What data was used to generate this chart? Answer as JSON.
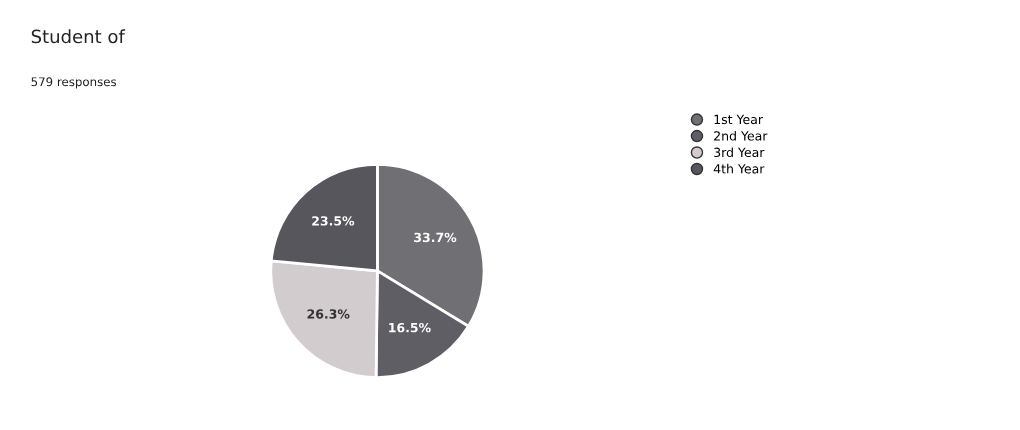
{
  "chart_data": {
    "type": "pie",
    "title": "Student of",
    "subtitle": "579 responses",
    "categories": [
      "1st Year",
      "2nd Year",
      "3rd Year",
      "4th Year"
    ],
    "values": [
      33.7,
      16.5,
      26.3,
      23.5
    ],
    "colors": [
      "#707074",
      "#5e5e64",
      "#d2cccf",
      "#56565c"
    ],
    "value_labels": [
      "33.7%",
      "16.5%",
      "26.3%",
      "23.5%"
    ],
    "legend": "right"
  }
}
